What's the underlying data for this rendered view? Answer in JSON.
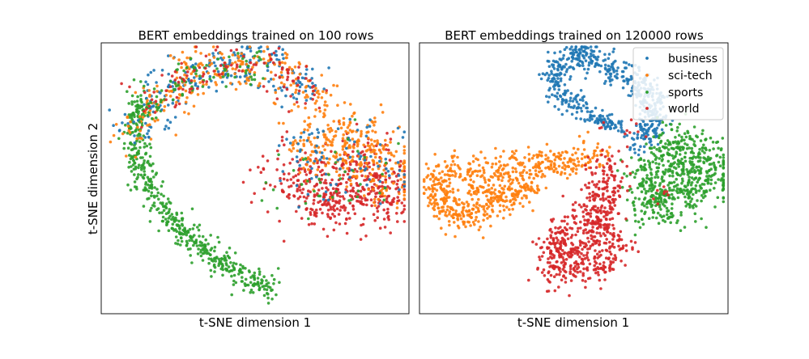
{
  "chart_data": [
    {
      "type": "scatter",
      "title": "BERT embeddings trained on 100 rows",
      "xlabel": "t-SNE dimension 1",
      "ylabel": "t-SNE dimension 2",
      "ticks": "none",
      "grid": false,
      "legend": "none",
      "xlim": [
        0,
        100
      ],
      "ylim": [
        0,
        100
      ],
      "series": [
        {
          "name": "business",
          "color": "#1f77b4"
        },
        {
          "name": "sci-tech",
          "color": "#ff7f0e"
        },
        {
          "name": "sports",
          "color": "#2ca02c"
        },
        {
          "name": "world",
          "color": "#d62728"
        }
      ],
      "clusters": [
        {
          "series": "sports",
          "count": 520,
          "spread": 2.2,
          "path": [
            [
              55,
              9
            ],
            [
              46,
              14
            ],
            [
              38,
              20
            ],
            [
              30,
              27
            ],
            [
              22,
              35
            ],
            [
              16,
              46
            ],
            [
              12,
              57
            ],
            [
              11,
              68
            ],
            [
              13,
              78
            ]
          ]
        },
        {
          "series": "business",
          "count": 230,
          "spread": 4.2,
          "path": [
            [
              12,
              68
            ],
            [
              17,
              79
            ],
            [
              26,
              86
            ],
            [
              37,
              91
            ],
            [
              49,
              93
            ],
            [
              60,
              90
            ],
            [
              68,
              82
            ]
          ]
        },
        {
          "series": "sci-tech",
          "count": 260,
          "spread": 4.2,
          "path": [
            [
              11,
              66
            ],
            [
              17,
              78
            ],
            [
              26,
              86
            ],
            [
              37,
              91
            ],
            [
              49,
              93
            ],
            [
              60,
              90
            ],
            [
              68,
              82
            ],
            [
              74,
              72
            ]
          ]
        },
        {
          "series": "sports",
          "count": 90,
          "spread": 4.0,
          "path": [
            [
              12,
              72
            ],
            [
              22,
              84
            ],
            [
              36,
              90
            ],
            [
              52,
              92
            ]
          ]
        },
        {
          "series": "world",
          "count": 110,
          "spread": 4.0,
          "path": [
            [
              14,
              76
            ],
            [
              28,
              88
            ],
            [
              45,
              92
            ],
            [
              60,
              89
            ],
            [
              68,
              80
            ]
          ]
        },
        {
          "series": "world",
          "count": 480,
          "spread": 6.0,
          "blob": [
            [
              63,
              50
            ],
            [
              72,
              46
            ],
            [
              80,
              44
            ],
            [
              90,
              48
            ],
            [
              85,
              56
            ],
            [
              74,
              40
            ],
            [
              92,
              42
            ]
          ]
        },
        {
          "series": "sci-tech",
          "count": 300,
          "spread": 6.0,
          "blob": [
            [
              70,
              60
            ],
            [
              80,
              62
            ],
            [
              88,
              58
            ],
            [
              94,
              50
            ],
            [
              76,
              66
            ],
            [
              86,
              64
            ]
          ]
        },
        {
          "series": "business",
          "count": 90,
          "spread": 7.0,
          "blob": [
            [
              72,
              62
            ],
            [
              84,
              60
            ],
            [
              90,
              52
            ],
            [
              66,
              56
            ]
          ]
        },
        {
          "series": "sports",
          "count": 40,
          "spread": 8.0,
          "blob": [
            [
              70,
              50
            ],
            [
              84,
              50
            ]
          ]
        }
      ]
    },
    {
      "type": "scatter",
      "title": "BERT embeddings trained on 120000 rows",
      "xlabel": "t-SNE dimension 1",
      "ylabel": "",
      "ticks": "none",
      "grid": false,
      "legend": "top-right",
      "xlim": [
        0,
        100
      ],
      "ylim": [
        0,
        100
      ],
      "series": [
        {
          "name": "business",
          "color": "#1f77b4"
        },
        {
          "name": "sci-tech",
          "color": "#ff7f0e"
        },
        {
          "name": "sports",
          "color": "#2ca02c"
        },
        {
          "name": "world",
          "color": "#d62728"
        }
      ],
      "clusters": [
        {
          "series": "business",
          "count": 540,
          "spread": 2.4,
          "path": [
            [
              53,
              76
            ],
            [
              46,
              81
            ],
            [
              44,
              88
            ],
            [
              47,
              94
            ],
            [
              53,
              98
            ],
            [
              57,
              93
            ],
            [
              63,
              90
            ],
            [
              70,
              87
            ],
            [
              74,
              82
            ],
            [
              76,
              75
            ],
            [
              75,
              69
            ],
            [
              73,
              64
            ]
          ]
        },
        {
          "series": "business",
          "count": 70,
          "spread": 1.6,
          "path": [
            [
              53,
              74
            ],
            [
              58,
              72
            ],
            [
              63,
              70
            ],
            [
              67,
              68
            ]
          ]
        },
        {
          "series": "sci-tech",
          "count": 620,
          "spread": 3.2,
          "path": [
            [
              59,
              59
            ],
            [
              52,
              57
            ],
            [
              44,
              56
            ],
            [
              35,
              55
            ],
            [
              26,
              53
            ],
            [
              18,
              52
            ],
            [
              10,
              53
            ],
            [
              6,
              48
            ],
            [
              6,
              43
            ],
            [
              10,
              38
            ],
            [
              14,
              36
            ],
            [
              20,
              38
            ],
            [
              26,
              42
            ],
            [
              31,
              45
            ],
            [
              36,
              47
            ]
          ]
        },
        {
          "series": "sci-tech",
          "count": 60,
          "spread": 2.0,
          "path": [
            [
              18,
              48
            ],
            [
              22,
              44
            ],
            [
              28,
              44
            ],
            [
              34,
              46
            ],
            [
              38,
              48
            ]
          ]
        },
        {
          "series": "sports",
          "count": 620,
          "spread": 4.6,
          "blob": [
            [
              74,
              50
            ],
            [
              79,
              44
            ],
            [
              85,
              42
            ],
            [
              88,
              50
            ],
            [
              84,
              58
            ],
            [
              91,
              58
            ],
            [
              95,
              50
            ],
            [
              77,
              40
            ],
            [
              82,
              62
            ]
          ]
        },
        {
          "series": "world",
          "count": 620,
          "spread": 3.8,
          "blob": [
            [
              46,
              28
            ],
            [
              52,
              22
            ],
            [
              58,
              18
            ],
            [
              62,
              26
            ],
            [
              56,
              33
            ],
            [
              48,
              16
            ],
            [
              44,
              22
            ],
            [
              58,
              36
            ],
            [
              60,
              44
            ],
            [
              60,
              52
            ]
          ]
        },
        {
          "series": "business",
          "count": 12,
          "spread": 1.5,
          "blob": [
            [
              61,
              70
            ],
            [
              70,
              60
            ]
          ]
        },
        {
          "series": "world",
          "count": 18,
          "spread": 2.0,
          "blob": [
            [
              61,
              69
            ],
            [
              70,
              66
            ],
            [
              78,
              44
            ]
          ]
        }
      ]
    }
  ]
}
